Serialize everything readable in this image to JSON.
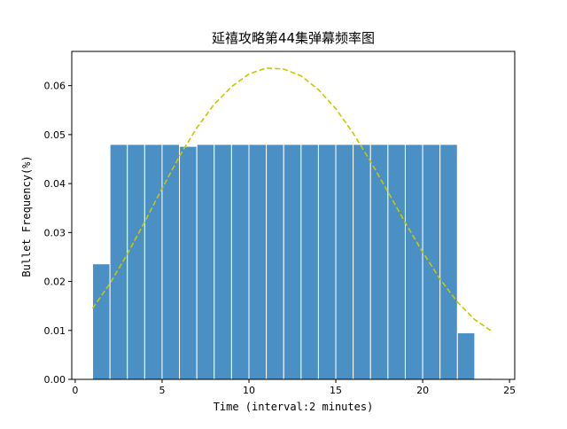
{
  "chart_data": {
    "type": "bar",
    "title": "延禧攻略第44集弹幕频率图",
    "xlabel": "Time (interval:2 minutes)",
    "ylabel": "Bullet Frequency(%)",
    "xlim": [
      -0.2,
      25.3
    ],
    "ylim": [
      0,
      0.067
    ],
    "xticks": [
      0,
      5,
      10,
      15,
      20,
      25
    ],
    "yticks": [
      0.0,
      0.01,
      0.02,
      0.03,
      0.04,
      0.05,
      0.06
    ],
    "ytick_labels": [
      "0.00",
      "0.01",
      "0.02",
      "0.03",
      "0.04",
      "0.05",
      "0.06"
    ],
    "grid": false,
    "bar_color": "#4a90c4",
    "bar_edge_color": "#ffffff",
    "series": [
      {
        "type": "bar",
        "bins": [
          [
            1,
            2
          ],
          [
            2,
            3
          ],
          [
            3,
            4
          ],
          [
            4,
            5
          ],
          [
            5,
            6
          ],
          [
            6,
            7
          ],
          [
            7,
            8
          ],
          [
            8,
            9
          ],
          [
            9,
            10
          ],
          [
            10,
            11
          ],
          [
            11,
            12
          ],
          [
            12,
            13
          ],
          [
            13,
            14
          ],
          [
            14,
            15
          ],
          [
            15,
            16
          ],
          [
            16,
            17
          ],
          [
            17,
            18
          ],
          [
            18,
            19
          ],
          [
            19,
            20
          ],
          [
            20,
            21
          ],
          [
            21,
            22
          ],
          [
            22,
            23
          ],
          [
            23,
            24
          ]
        ],
        "values": [
          0.0236,
          0.048,
          0.048,
          0.048,
          0.048,
          0.0476,
          0.048,
          0.048,
          0.048,
          0.048,
          0.048,
          0.048,
          0.048,
          0.048,
          0.048,
          0.048,
          0.048,
          0.048,
          0.048,
          0.048,
          0.048,
          0.0095,
          0.0002
        ]
      },
      {
        "type": "line",
        "style": "dashed",
        "color": "#c8c800",
        "x": [
          1,
          2,
          3,
          4,
          5,
          6,
          7,
          8,
          9,
          10,
          11,
          12,
          13,
          14,
          15,
          16,
          17,
          18,
          19,
          20,
          21,
          22,
          23,
          24
        ],
        "y": [
          0.0145,
          0.0196,
          0.0256,
          0.0322,
          0.039,
          0.0456,
          0.0514,
          0.0562,
          0.0598,
          0.0624,
          0.0636,
          0.0634,
          0.062,
          0.0592,
          0.0553,
          0.0503,
          0.0445,
          0.0383,
          0.032,
          0.026,
          0.0205,
          0.0158,
          0.0122,
          0.0098
        ]
      }
    ]
  }
}
